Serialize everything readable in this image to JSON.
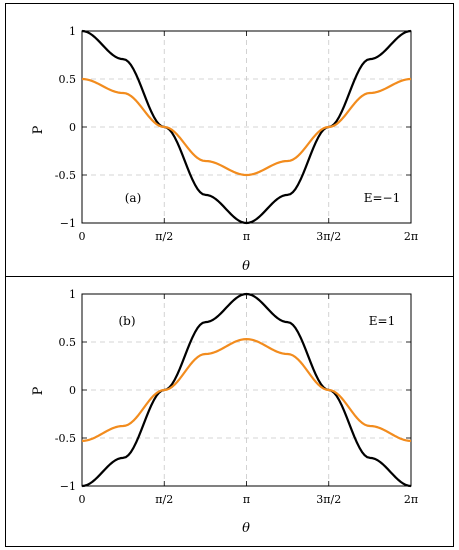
{
  "chart_data": [
    {
      "type": "line",
      "panel_label": "(a)",
      "annotation": "E=−1",
      "xlabel": "θ",
      "ylabel": "P",
      "xlim": [
        0,
        6.2832
      ],
      "ylim": [
        -1,
        1
      ],
      "x_ticks": [
        {
          "value": 0,
          "label": "0"
        },
        {
          "value": 1.5708,
          "label": "π/2"
        },
        {
          "value": 3.1416,
          "label": "π"
        },
        {
          "value": 4.7124,
          "label": "3π/2"
        },
        {
          "value": 6.2832,
          "label": "2π"
        }
      ],
      "y_ticks": [
        {
          "value": 1,
          "label": "1"
        },
        {
          "value": 0.5,
          "label": "0.5"
        },
        {
          "value": 0,
          "label": "0"
        },
        {
          "value": -0.5,
          "label": "-0.5"
        },
        {
          "value": -1,
          "label": "−1"
        }
      ],
      "grid": true,
      "series": [
        {
          "color": "#000000",
          "x": [
            0,
            0.7854,
            1.5708,
            2.3562,
            3.1416,
            3.927,
            4.7124,
            5.4978,
            6.2832
          ],
          "values": [
            1,
            0.707,
            0,
            -0.707,
            -1,
            -0.707,
            0,
            0.707,
            1
          ]
        },
        {
          "color": "#f28c1e",
          "x": [
            0,
            0.7854,
            1.5708,
            2.3562,
            3.1416,
            3.927,
            4.7124,
            5.4978,
            6.2832
          ],
          "values": [
            0.5,
            0.354,
            0,
            -0.354,
            -0.5,
            -0.354,
            0,
            0.354,
            0.5
          ]
        }
      ]
    },
    {
      "type": "line",
      "panel_label": "(b)",
      "annotation": "E=1",
      "xlabel": "θ",
      "ylabel": "P",
      "xlim": [
        0,
        6.2832
      ],
      "ylim": [
        -1,
        1
      ],
      "x_ticks": [
        {
          "value": 0,
          "label": "0"
        },
        {
          "value": 1.5708,
          "label": "π/2"
        },
        {
          "value": 3.1416,
          "label": "π"
        },
        {
          "value": 4.7124,
          "label": "3π/2"
        },
        {
          "value": 6.2832,
          "label": "2π"
        }
      ],
      "y_ticks": [
        {
          "value": 1,
          "label": "1"
        },
        {
          "value": 0.5,
          "label": "0.5"
        },
        {
          "value": 0,
          "label": "0"
        },
        {
          "value": -0.5,
          "label": "-0.5"
        },
        {
          "value": -1,
          "label": "−1"
        }
      ],
      "grid": true,
      "series": [
        {
          "color": "#000000",
          "x": [
            0,
            0.7854,
            1.5708,
            2.3562,
            3.1416,
            3.927,
            4.7124,
            5.4978,
            6.2832
          ],
          "values": [
            -1,
            -0.707,
            0,
            0.707,
            1,
            0.707,
            0,
            -0.707,
            -1
          ]
        },
        {
          "color": "#f28c1e",
          "x": [
            0,
            0.7854,
            1.5708,
            2.3562,
            3.1416,
            3.927,
            4.7124,
            5.4978,
            6.2832
          ],
          "values": [
            -0.53,
            -0.375,
            0,
            0.375,
            0.53,
            0.375,
            0,
            -0.375,
            -0.53
          ]
        }
      ]
    }
  ]
}
